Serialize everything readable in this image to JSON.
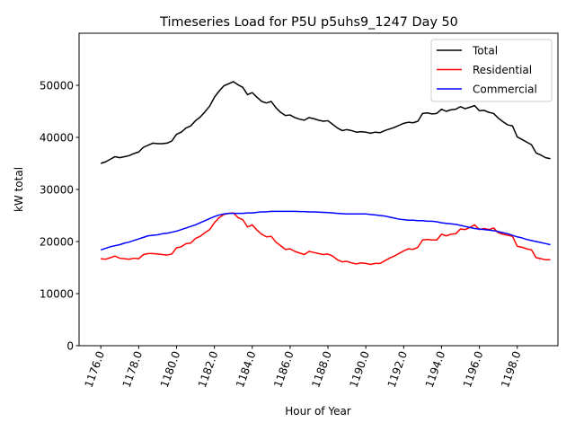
{
  "chart_data": {
    "type": "line",
    "title": "Timeseries Load for P5U p5uhs9_1247  Day 50",
    "xlabel": "Hour of Year",
    "ylabel": "kW total",
    "xlim": [
      1174.85,
      1200.15
    ],
    "ylim": [
      0,
      60000
    ],
    "x_ticks": [
      1176,
      1178,
      1180,
      1182,
      1184,
      1186,
      1188,
      1190,
      1192,
      1194,
      1196,
      1198
    ],
    "x_tick_labels": [
      "1176.0",
      "1178.0",
      "1180.0",
      "1182.0",
      "1184.0",
      "1186.0",
      "1188.0",
      "1190.0",
      "1192.0",
      "1194.0",
      "1196.0",
      "1198.0"
    ],
    "y_ticks": [
      0,
      10000,
      20000,
      30000,
      40000,
      50000
    ],
    "y_tick_labels": [
      "0",
      "10000",
      "20000",
      "30000",
      "40000",
      "50000"
    ],
    "legend_position": "top-right",
    "grid": false,
    "x_start": 1176.0,
    "x_step": 0.25,
    "series": [
      {
        "name": "Total",
        "color": "#000000",
        "values": [
          35000,
          35300,
          35800,
          36300,
          36100,
          36300,
          36500,
          36900,
          37200,
          38100,
          38500,
          38900,
          38800,
          38800,
          38900,
          39300,
          40600,
          41000,
          41800,
          42200,
          43200,
          43900,
          44900,
          46000,
          47700,
          48900,
          49900,
          50300,
          50700,
          50100,
          49600,
          48200,
          48600,
          47700,
          46900,
          46600,
          46900,
          45700,
          44800,
          44200,
          44300,
          43800,
          43500,
          43300,
          43800,
          43600,
          43300,
          43100,
          43200,
          42500,
          41800,
          41300,
          41500,
          41300,
          41000,
          41100,
          41000,
          40800,
          41000,
          40900,
          41300,
          41600,
          41900,
          42300,
          42700,
          42900,
          42800,
          43100,
          44600,
          44700,
          44500,
          44600,
          45400,
          45000,
          45300,
          45400,
          45900,
          45500,
          45800,
          46100,
          45100,
          45200,
          44800,
          44600,
          43700,
          43000,
          42400,
          42200,
          40100,
          39600,
          39100,
          38600,
          37000,
          36600,
          36100,
          35900
        ]
      },
      {
        "name": "Residential",
        "color": "#ff0000",
        "values": [
          16700,
          16600,
          16900,
          17200,
          16800,
          16700,
          16600,
          16800,
          16700,
          17500,
          17700,
          17700,
          17600,
          17500,
          17400,
          17600,
          18800,
          19000,
          19600,
          19700,
          20600,
          21000,
          21700,
          22300,
          23600,
          24600,
          25200,
          25400,
          25500,
          24600,
          24200,
          22800,
          23200,
          22200,
          21400,
          20900,
          21000,
          19900,
          19200,
          18500,
          18600,
          18100,
          17800,
          17500,
          18100,
          17900,
          17700,
          17500,
          17600,
          17200,
          16500,
          16100,
          16200,
          15900,
          15700,
          15900,
          15800,
          15600,
          15800,
          15800,
          16300,
          16800,
          17200,
          17700,
          18200,
          18600,
          18500,
          18900,
          20300,
          20400,
          20300,
          20300,
          21400,
          21100,
          21400,
          21500,
          22400,
          22300,
          22700,
          23200,
          22300,
          22500,
          22300,
          22600,
          21700,
          21400,
          21200,
          21000,
          19100,
          18900,
          18600,
          18400,
          16900,
          16700,
          16500,
          16500
        ]
      },
      {
        "name": "Commercial",
        "color": "#0000ff",
        "values": [
          18400,
          18700,
          19000,
          19200,
          19400,
          19700,
          19900,
          20200,
          20500,
          20800,
          21100,
          21200,
          21300,
          21500,
          21600,
          21800,
          22000,
          22300,
          22600,
          22900,
          23200,
          23600,
          24000,
          24400,
          24800,
          25100,
          25300,
          25400,
          25400,
          25400,
          25400,
          25500,
          25500,
          25600,
          25700,
          25700,
          25800,
          25800,
          25800,
          25800,
          25800,
          25800,
          25750,
          25750,
          25700,
          25700,
          25650,
          25600,
          25550,
          25500,
          25400,
          25350,
          25300,
          25300,
          25300,
          25300,
          25300,
          25200,
          25100,
          25000,
          24900,
          24700,
          24500,
          24300,
          24200,
          24100,
          24100,
          24000,
          24000,
          23900,
          23900,
          23800,
          23600,
          23500,
          23400,
          23300,
          23100,
          22900,
          22700,
          22500,
          22400,
          22300,
          22200,
          22100,
          21900,
          21700,
          21500,
          21200,
          20900,
          20700,
          20400,
          20200,
          20000,
          19800,
          19600,
          19400
        ]
      }
    ]
  }
}
